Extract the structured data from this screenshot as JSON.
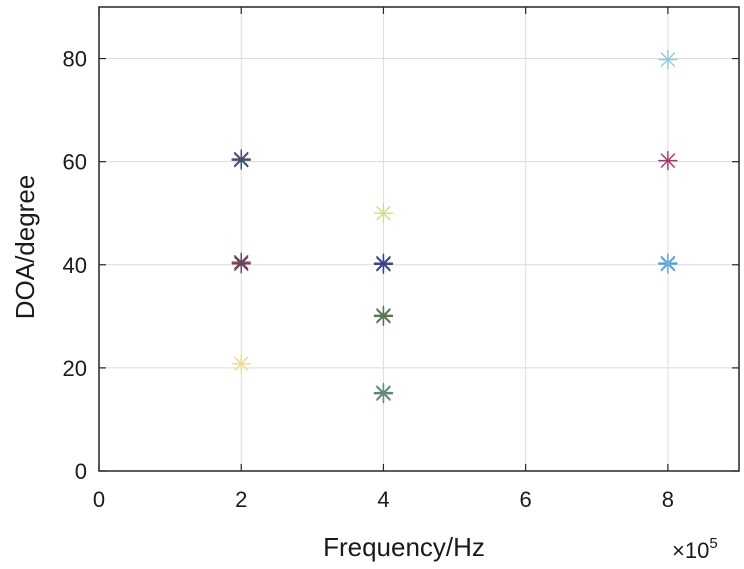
{
  "chart_data": {
    "type": "scatter",
    "title": "",
    "xlabel": "Frequency/Hz",
    "ylabel": "DOA/degree",
    "x_exponent_label": "×10",
    "x_exponent_power": "5",
    "xlim": [
      0,
      9
    ],
    "ylim": [
      0,
      90
    ],
    "xticks": [
      0,
      2,
      4,
      6,
      8
    ],
    "yticks": [
      0,
      20,
      40,
      60,
      80
    ],
    "xtick_labels": [
      "0",
      "2",
      "4",
      "6",
      "8"
    ],
    "ytick_labels": [
      "0",
      "20",
      "40",
      "60",
      "80"
    ],
    "grid": true,
    "marker": "asterisk",
    "points": [
      {
        "x": 2,
        "y": 60.5,
        "color": "#8b2e4b"
      },
      {
        "x": 2,
        "y": 60.3,
        "color": "#2e5a7a"
      },
      {
        "x": 2,
        "y": 40.5,
        "color": "#a0303a"
      },
      {
        "x": 2,
        "y": 40.2,
        "color": "#5a4a6a"
      },
      {
        "x": 2,
        "y": 20.8,
        "color": "#f0d890"
      },
      {
        "x": 4,
        "y": 50.0,
        "color": "#c8e08c"
      },
      {
        "x": 4,
        "y": 40.3,
        "color": "#5a3a7a"
      },
      {
        "x": 4,
        "y": 40.1,
        "color": "#2e4a8a"
      },
      {
        "x": 4,
        "y": 30.2,
        "color": "#8a6a3a"
      },
      {
        "x": 4,
        "y": 30.0,
        "color": "#4a7a5a"
      },
      {
        "x": 4,
        "y": 15.2,
        "color": "#4a8aa0"
      },
      {
        "x": 4,
        "y": 15.0,
        "color": "#6a8a6a"
      },
      {
        "x": 8,
        "y": 79.8,
        "color": "#8ec8e8"
      },
      {
        "x": 8,
        "y": 60.2,
        "color": "#b0306a"
      },
      {
        "x": 8,
        "y": 40.3,
        "color": "#3a90d0"
      },
      {
        "x": 8,
        "y": 40.1,
        "color": "#6ab0e0"
      }
    ]
  }
}
